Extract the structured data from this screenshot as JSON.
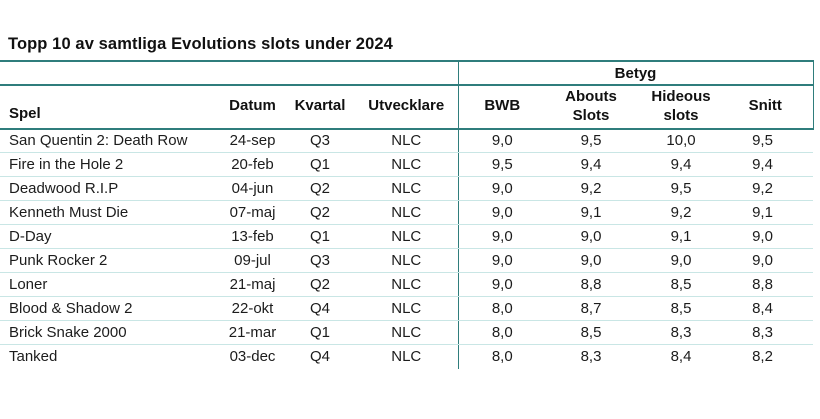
{
  "page_title": "Topp 10 av samtliga Evolutions slots under 2024",
  "chart_data": {
    "type": "table",
    "title": "Topp 10 av samtliga Evolutions slots under 2024",
    "group_header": "Betyg",
    "group_header_spans_columns": [
      "BWB",
      "Abouts Slots",
      "Hideous slots",
      "Snitt"
    ],
    "columns": [
      "Spel",
      "Datum",
      "Kvartal",
      "Utvecklare",
      "BWB",
      "Abouts Slots",
      "Hideous slots",
      "Snitt"
    ],
    "rows": [
      [
        "San Quentin 2: Death Row",
        "24-sep",
        "Q3",
        "NLC",
        "9,0",
        "9,5",
        "10,0",
        "9,5"
      ],
      [
        "Fire in the Hole 2",
        "20-feb",
        "Q1",
        "NLC",
        "9,5",
        "9,4",
        "9,4",
        "9,4"
      ],
      [
        "Deadwood R.I.P",
        "04-jun",
        "Q2",
        "NLC",
        "9,0",
        "9,2",
        "9,5",
        "9,2"
      ],
      [
        "Kenneth Must Die",
        "07-maj",
        "Q2",
        "NLC",
        "9,0",
        "9,1",
        "9,2",
        "9,1"
      ],
      [
        "D-Day",
        "13-feb",
        "Q1",
        "NLC",
        "9,0",
        "9,0",
        "9,1",
        "9,0"
      ],
      [
        "Punk Rocker 2",
        "09-jul",
        "Q3",
        "NLC",
        "9,0",
        "9,0",
        "9,0",
        "9,0"
      ],
      [
        "Loner",
        "21-maj",
        "Q2",
        "NLC",
        "9,0",
        "8,8",
        "8,5",
        "8,8"
      ],
      [
        "Blood & Shadow 2",
        "22-okt",
        "Q4",
        "NLC",
        "8,0",
        "8,7",
        "8,5",
        "8,4"
      ],
      [
        "Brick Snake 2000",
        "21-mar",
        "Q1",
        "NLC",
        "8,0",
        "8,5",
        "8,3",
        "8,3"
      ],
      [
        "Tanked",
        "03-dec",
        "Q4",
        "NLC",
        "8,0",
        "8,3",
        "8,4",
        "8,2"
      ]
    ]
  },
  "colors": {
    "accent": "#2f7d7c",
    "row_divider": "#c9e6e5",
    "text": "#1c1c1c",
    "background": "#ffffff"
  }
}
